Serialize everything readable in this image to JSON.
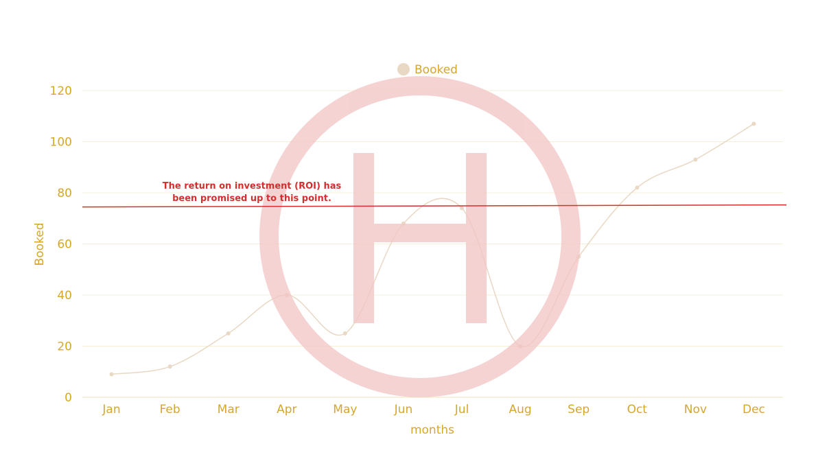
{
  "chart_data": {
    "type": "line",
    "categories": [
      "Jan",
      "Feb",
      "Mar",
      "Apr",
      "May",
      "Jun",
      "Jul",
      "Aug",
      "Sep",
      "Oct",
      "Nov",
      "Dec"
    ],
    "series": [
      {
        "name": "Booked",
        "values": [
          9,
          12,
          25,
          40,
          25,
          68,
          74,
          20,
          55,
          82,
          93,
          107
        ],
        "color": "#e8d8c4"
      }
    ],
    "title": "",
    "xlabel": "months",
    "ylabel": "Booked",
    "ylim": [
      0,
      120
    ],
    "yticks": [
      "0",
      "20",
      "40",
      "60",
      "80",
      "100",
      "120"
    ],
    "grid": true,
    "legend_position": "top-center",
    "accent_color": "#d4a72c",
    "reference_line": {
      "value": 75,
      "label_line1": "The return on investment (ROI) has",
      "label_line2": "been promised up to this point.",
      "color": "#d32f2f"
    },
    "watermark": {
      "letter": "H",
      "color": "#f2c4c4"
    }
  }
}
